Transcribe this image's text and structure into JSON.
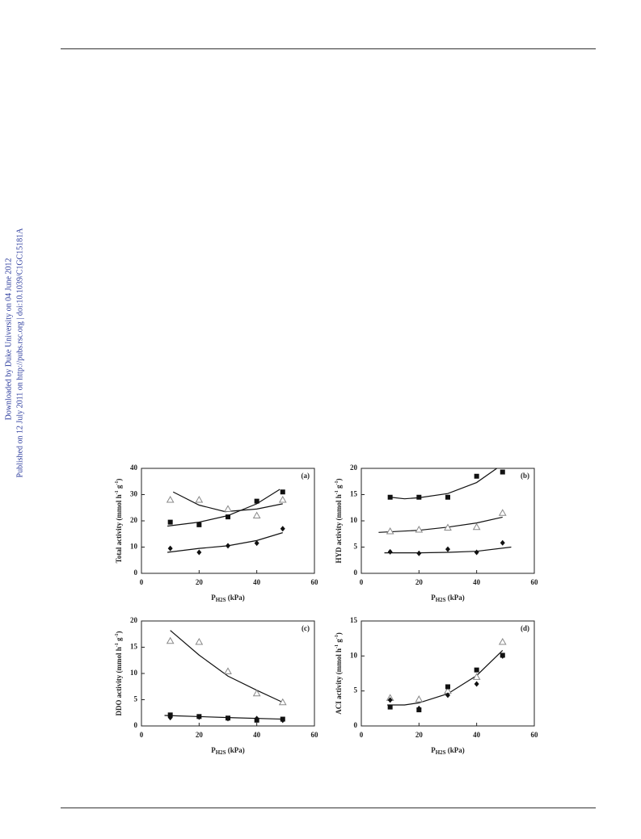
{
  "sidebar": [
    "Downloaded by Duke University on 04 June 2012",
    "Published on 12 July 2011 on http://pubs.rsc.org | doi:10.1039/C1GC15181A"
  ],
  "chart_data": [
    {
      "type": "scatter",
      "panel_label": "(a)",
      "xlabel": [
        "P",
        "H2S",
        " (kPa)"
      ],
      "ylabel": [
        "Total activity (mmol h",
        "-1",
        " g",
        "-1",
        ")"
      ],
      "xlim": [
        0,
        60
      ],
      "xticks": [
        0,
        20,
        40,
        60
      ],
      "ylim": [
        0,
        40
      ],
      "yticks": [
        0,
        10,
        20,
        30,
        40
      ],
      "series": [
        {
          "marker": "square",
          "color": "#111111",
          "x": [
            10,
            20,
            30,
            40,
            49
          ],
          "values": [
            19.5,
            18.5,
            21.5,
            27.5,
            31
          ]
        },
        {
          "marker": "triangle",
          "color": "#888888",
          "x": [
            10,
            20,
            30,
            40,
            49
          ],
          "values": [
            28,
            28,
            24.5,
            22,
            28
          ]
        },
        {
          "marker": "diamond",
          "color": "#111111",
          "x": [
            10,
            20,
            30,
            40,
            49
          ],
          "values": [
            9.5,
            8,
            10.5,
            11.5,
            17
          ]
        }
      ],
      "fits": [
        {
          "color": "#111111",
          "x": [
            9,
            20,
            30,
            40,
            48
          ],
          "values": [
            18,
            19.5,
            22,
            26.5,
            32
          ]
        },
        {
          "color": "#111111",
          "x": [
            11,
            20,
            29,
            40,
            49
          ],
          "values": [
            31,
            26,
            23.5,
            24.5,
            26.5
          ]
        },
        {
          "color": "#111111",
          "x": [
            9,
            20,
            30,
            40,
            49
          ],
          "values": [
            8,
            9.5,
            10.5,
            12.5,
            15.5
          ]
        }
      ]
    },
    {
      "type": "scatter",
      "panel_label": "(b)",
      "xlabel": [
        "P",
        "H2S",
        " (kPa)"
      ],
      "ylabel": [
        "HYD activity (mmol h",
        "-1",
        " g",
        "-1",
        ")"
      ],
      "xlim": [
        0,
        60
      ],
      "xticks": [
        0,
        20,
        40,
        60
      ],
      "ylim": [
        0,
        20
      ],
      "yticks": [
        0,
        5,
        10,
        15,
        20
      ],
      "series": [
        {
          "marker": "square",
          "color": "#111111",
          "x": [
            10,
            20,
            30,
            40,
            49
          ],
          "values": [
            14.5,
            14.5,
            14.5,
            18.5,
            19.3
          ]
        },
        {
          "marker": "triangle",
          "color": "#888888",
          "x": [
            10,
            20,
            30,
            40,
            49
          ],
          "values": [
            8,
            8.3,
            8.7,
            8.8,
            11.5
          ]
        },
        {
          "marker": "diamond",
          "color": "#111111",
          "x": [
            10,
            20,
            30,
            40,
            49
          ],
          "values": [
            4.1,
            3.8,
            4.6,
            4,
            5.8
          ]
        }
      ],
      "fits": [
        {
          "color": "#111111",
          "x": [
            10,
            15,
            20,
            30,
            40,
            47
          ],
          "values": [
            14.5,
            14.2,
            14.4,
            15.2,
            17.3,
            20
          ]
        },
        {
          "color": "#111111",
          "x": [
            6,
            20,
            30,
            40,
            49
          ],
          "values": [
            7.8,
            8.2,
            8.8,
            9.6,
            10.7
          ]
        },
        {
          "color": "#111111",
          "x": [
            8,
            20,
            30,
            40,
            52
          ],
          "values": [
            3.9,
            3.9,
            4,
            4.2,
            5
          ]
        }
      ]
    },
    {
      "type": "scatter",
      "panel_label": "(c)",
      "xlabel": [
        "P",
        "H2S",
        " (kPa)"
      ],
      "ylabel": [
        "DDO activity (mmol h",
        "-1",
        " g",
        "-1",
        ")"
      ],
      "xlim": [
        0,
        60
      ],
      "xticks": [
        0,
        20,
        40,
        60
      ],
      "ylim": [
        0,
        20
      ],
      "yticks": [
        0,
        5,
        10,
        15,
        20
      ],
      "series": [
        {
          "marker": "triangle",
          "color": "#888888",
          "x": [
            10,
            20,
            30,
            40,
            49
          ],
          "values": [
            16.2,
            16,
            10.4,
            6.2,
            4.5
          ]
        },
        {
          "marker": "square",
          "color": "#111111",
          "x": [
            10,
            20,
            30,
            40,
            49
          ],
          "values": [
            2.1,
            1.8,
            1.5,
            1.1,
            1.3
          ]
        },
        {
          "marker": "diamond",
          "color": "#111111",
          "x": [
            10,
            20,
            30,
            40,
            49
          ],
          "values": [
            1.6,
            1.7,
            1.4,
            1.4,
            1.1
          ]
        }
      ],
      "fits": [
        {
          "color": "#111111",
          "x": [
            10,
            20,
            30,
            40,
            49
          ],
          "values": [
            18.2,
            13.5,
            9.5,
            6.8,
            4.5
          ]
        },
        {
          "color": "#111111",
          "x": [
            8,
            30,
            49
          ],
          "values": [
            2,
            1.6,
            1.3
          ]
        }
      ]
    },
    {
      "type": "scatter",
      "panel_label": "(d)",
      "xlabel": [
        "P",
        "H2S",
        " (kPa)"
      ],
      "ylabel": [
        "ACI activity (mmol h",
        "-1",
        " g",
        "-1",
        ")"
      ],
      "xlim": [
        0,
        60
      ],
      "xticks": [
        0,
        20,
        40,
        60
      ],
      "ylim": [
        0,
        15
      ],
      "yticks": [
        0,
        5,
        10,
        15
      ],
      "series": [
        {
          "marker": "triangle",
          "color": "#888888",
          "x": [
            10,
            20,
            30,
            40,
            49
          ],
          "values": [
            4,
            3.8,
            5,
            7,
            12
          ]
        },
        {
          "marker": "square",
          "color": "#111111",
          "x": [
            10,
            20,
            30,
            40,
            49
          ],
          "values": [
            2.7,
            2.3,
            5.6,
            8,
            10.1
          ]
        },
        {
          "marker": "diamond",
          "color": "#111111",
          "x": [
            10,
            20,
            30,
            40,
            49
          ],
          "values": [
            3.7,
            2.5,
            4.4,
            6,
            10
          ]
        }
      ],
      "fits": [
        {
          "color": "#111111",
          "x": [
            9,
            15,
            20,
            30,
            40,
            49
          ],
          "values": [
            3,
            3,
            3.3,
            4.6,
            7.2,
            10.8
          ]
        }
      ]
    }
  ]
}
